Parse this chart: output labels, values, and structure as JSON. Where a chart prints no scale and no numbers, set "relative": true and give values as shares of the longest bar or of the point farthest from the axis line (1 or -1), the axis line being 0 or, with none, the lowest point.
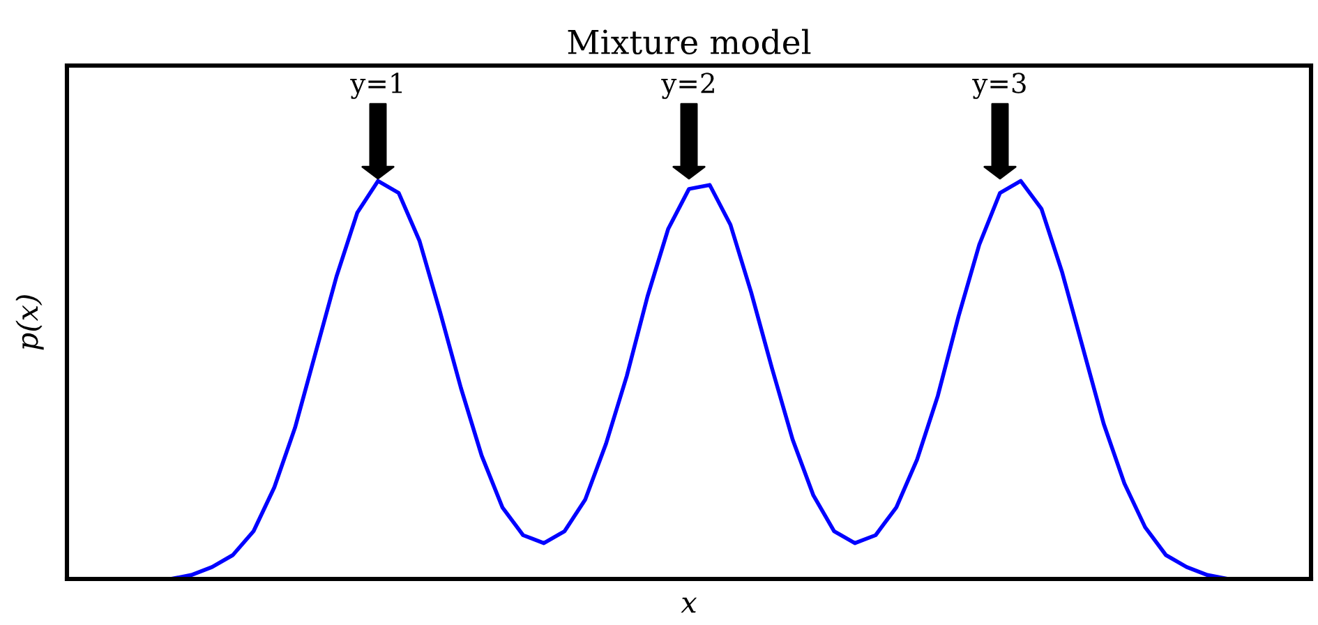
{
  "chart_data": {
    "type": "line",
    "title": "Mixture model",
    "xlabel": "x",
    "ylabel": "p(x)",
    "relative": true,
    "categories": [
      null,
      null,
      null,
      null,
      null,
      null,
      null,
      null,
      null,
      null,
      null,
      null,
      null,
      null,
      null,
      null,
      null,
      null,
      null,
      null,
      null,
      null,
      null,
      null,
      null,
      null,
      null,
      null,
      null,
      null,
      null,
      null,
      null,
      null,
      null,
      null,
      null,
      null,
      null,
      null,
      null,
      null,
      null,
      null,
      null,
      null,
      null,
      null,
      null,
      null,
      null,
      null,
      null,
      null,
      null,
      null,
      null,
      null,
      null,
      null,
      null
    ],
    "series": [
      {
        "color": "#0000ff",
        "values": [
          null,
          null,
          null,
          null,
          0,
          0,
          0.01,
          0.03,
          0.06,
          0.12,
          0.23,
          0.38,
          0.57,
          0.76,
          0.92,
          1.0,
          0.97,
          0.85,
          0.67,
          0.48,
          0.31,
          0.18,
          0.11,
          0.09,
          0.12,
          0.2,
          0.34,
          0.51,
          0.71,
          0.88,
          0.98,
          0.99,
          0.89,
          0.72,
          0.53,
          0.35,
          0.21,
          0.12,
          0.09,
          0.11,
          0.18,
          0.3,
          0.46,
          0.66,
          0.84,
          0.97,
          1.0,
          0.93,
          0.77,
          0.58,
          0.39,
          0.24,
          0.13,
          0.06,
          0.03,
          0.01,
          0,
          0,
          null,
          null,
          null
        ]
      }
    ],
    "annotations": [
      "y=1",
      "y=2",
      "y=3"
    ],
    "tick_labels": false,
    "legend": false,
    "marker": "none",
    "line_style": "solid"
  }
}
